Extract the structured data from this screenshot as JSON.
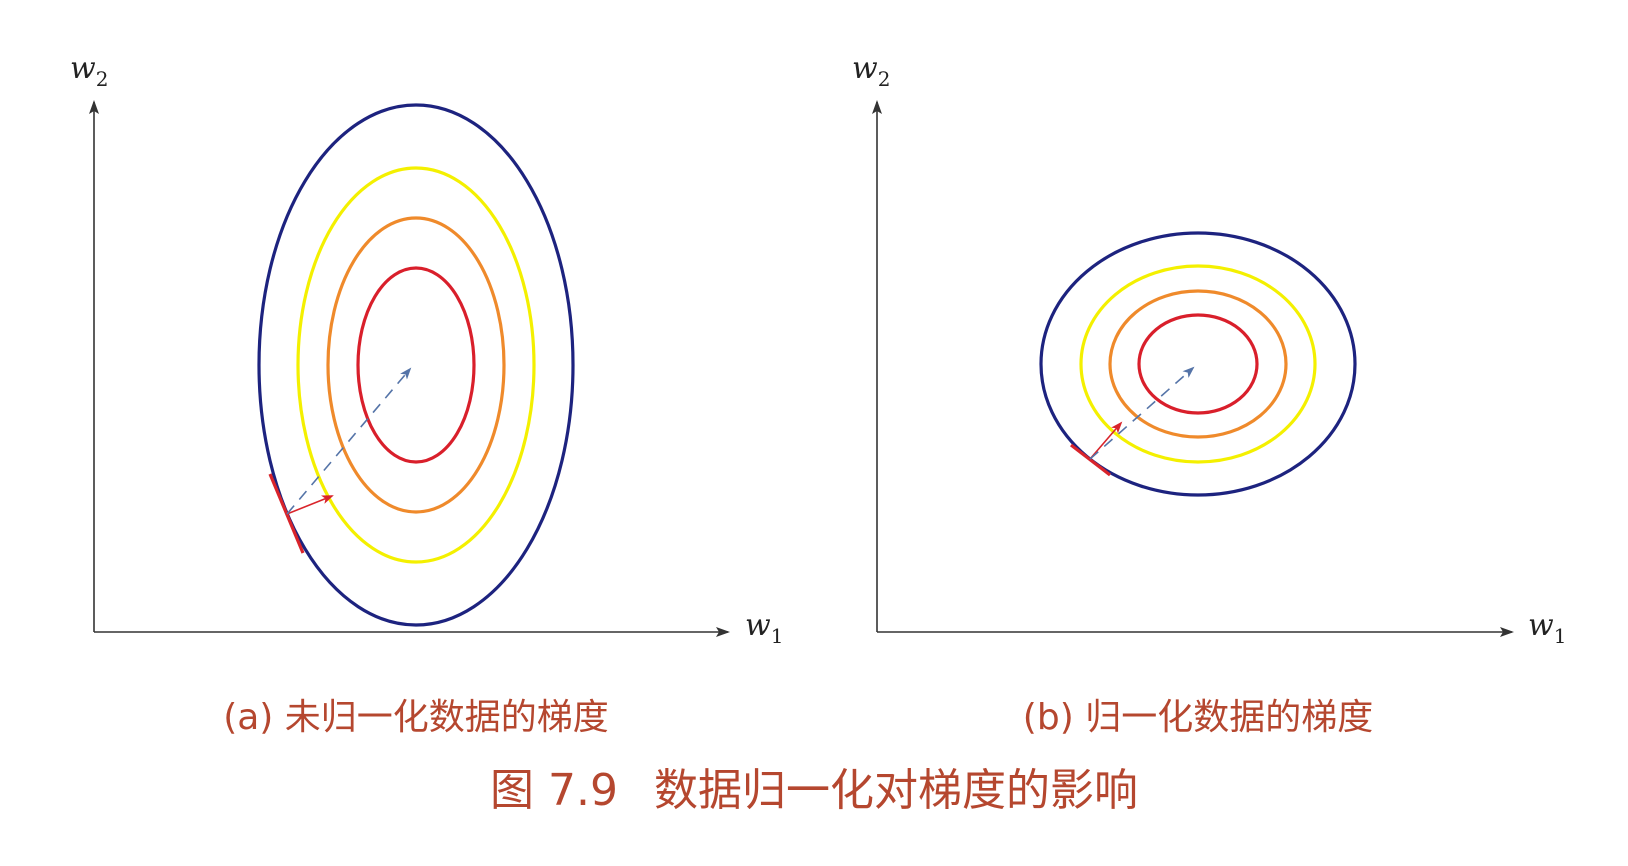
{
  "panel_a": {
    "y_axis_label": "w",
    "y_axis_sub": "2",
    "x_axis_label": "w",
    "x_axis_sub": "1",
    "caption": "(a) 未归一化数据的梯度"
  },
  "panel_b": {
    "y_axis_label": "w",
    "y_axis_sub": "2",
    "x_axis_label": "w",
    "x_axis_sub": "1",
    "caption": "(b) 归一化数据的梯度"
  },
  "figure": {
    "number": "图 7.9",
    "title": "数据归一化对梯度的影响"
  },
  "colors": {
    "outer_contour": "#1d237f",
    "contour_2": "#f4f000",
    "contour_3": "#ef8a2b",
    "inner_contour": "#d91f2b",
    "gradient_arrow": "#d9242b",
    "path_arrow": "#5574a8",
    "axis": "#333333"
  }
}
